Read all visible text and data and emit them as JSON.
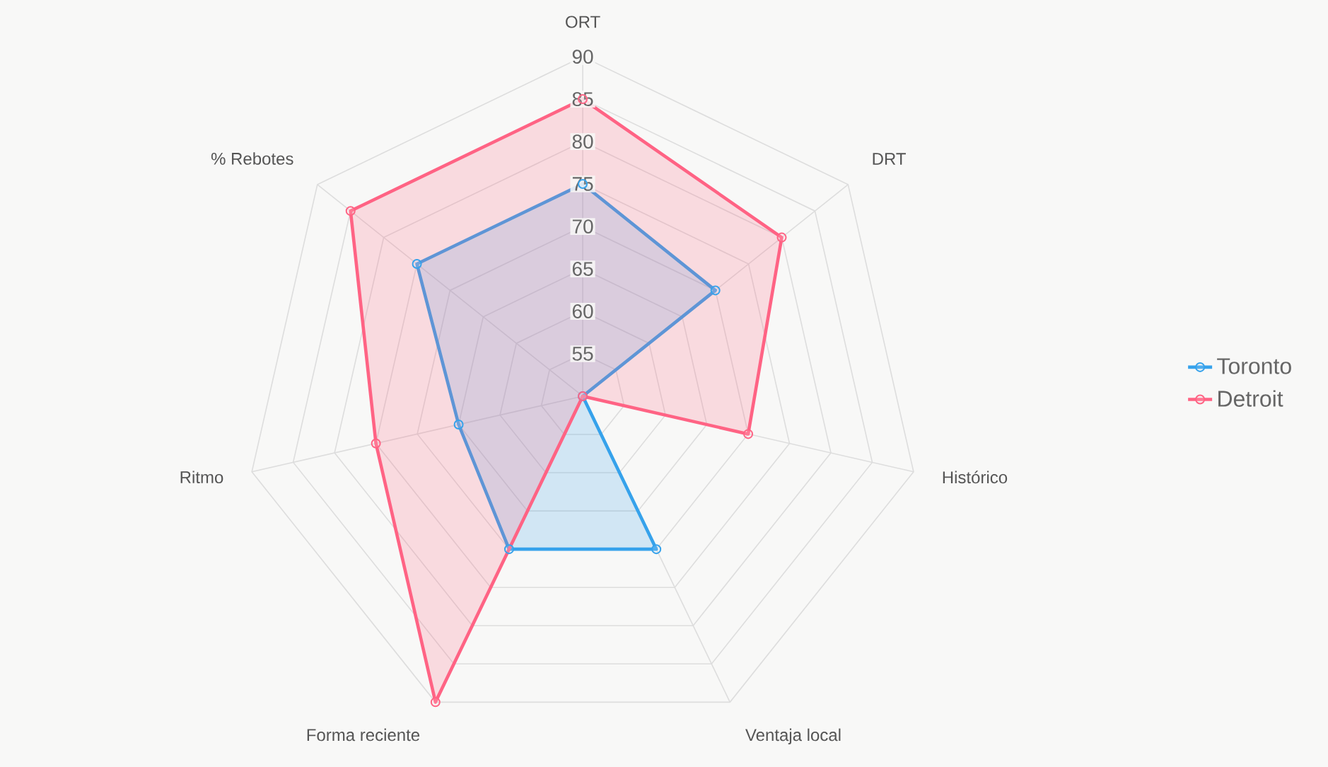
{
  "chart_data": {
    "type": "radar",
    "categories": [
      "ORT",
      "DRT",
      "Histórico",
      "Ventaja local",
      "Forma reciente",
      "Ritmo",
      "% Rebotes"
    ],
    "series": [
      {
        "name": "Toronto",
        "color": "#36a2eb",
        "values": [
          75,
          70,
          50,
          70,
          70,
          65,
          75
        ]
      },
      {
        "name": "Detroit",
        "color": "#ff6384",
        "values": [
          85,
          80,
          70,
          50,
          90,
          75,
          85
        ]
      }
    ],
    "ylim": [
      50,
      90
    ],
    "yticks": [
      55,
      60,
      65,
      70,
      75,
      80,
      85,
      90
    ],
    "grid": true,
    "legend": "right",
    "marker": "circle"
  }
}
